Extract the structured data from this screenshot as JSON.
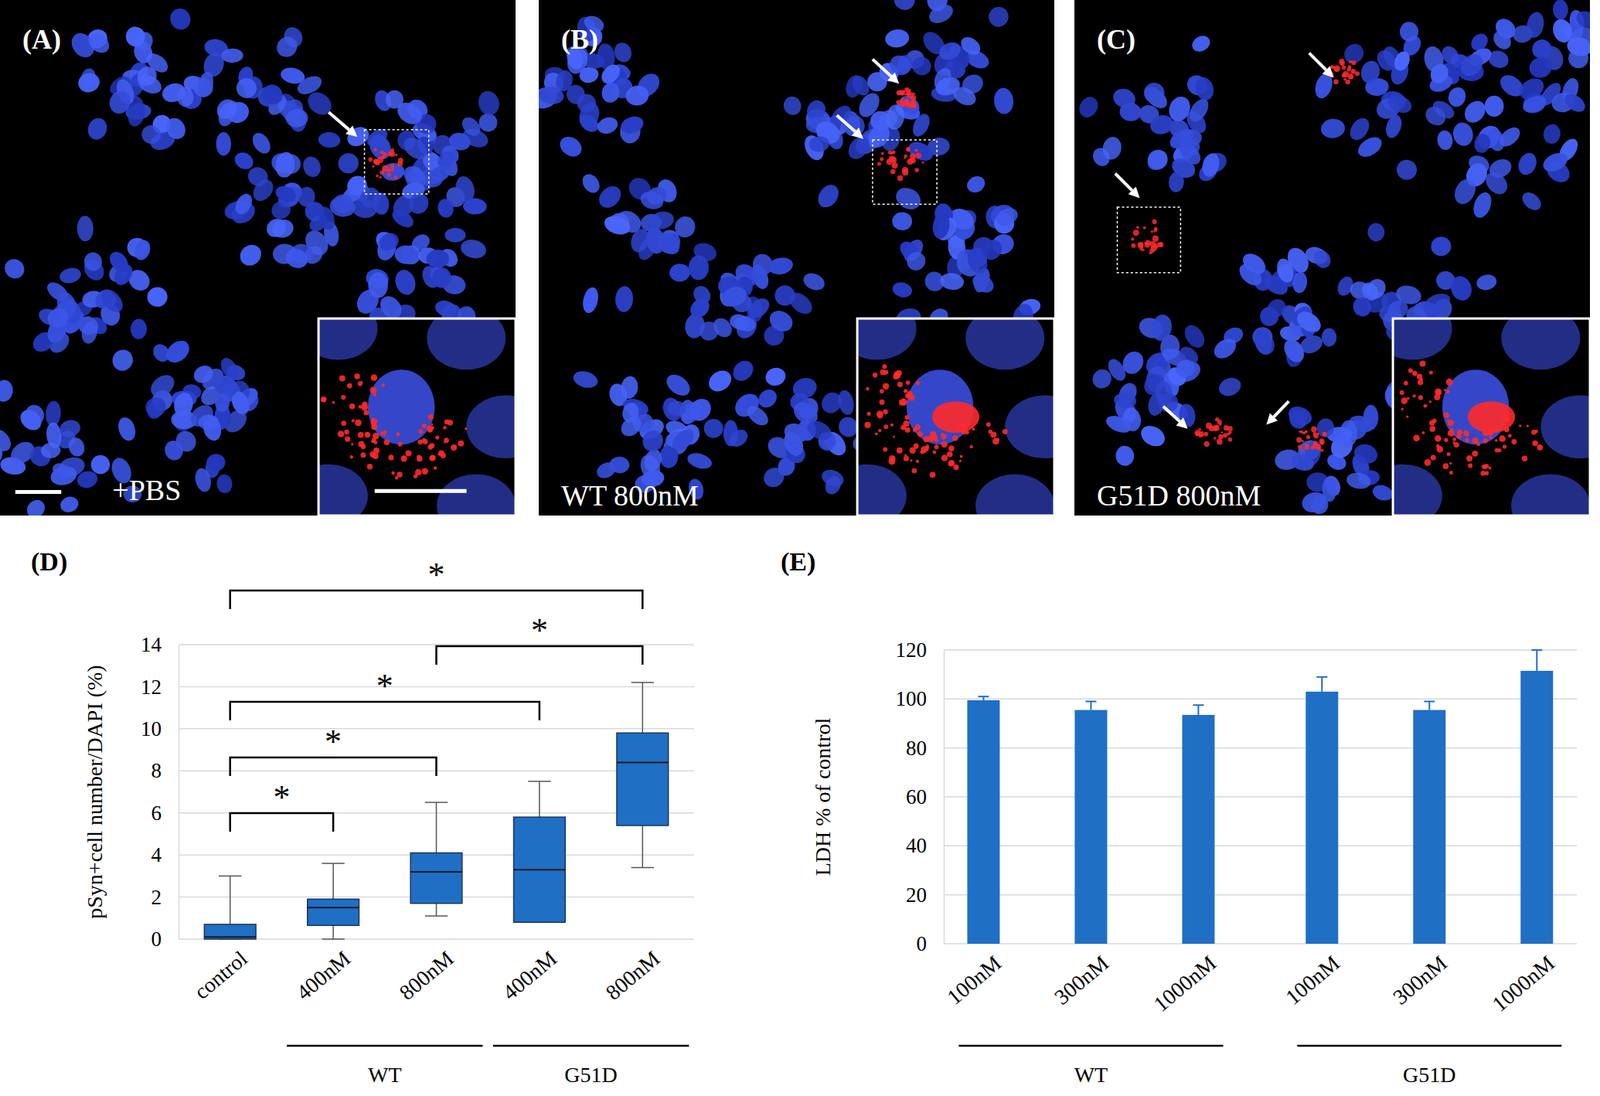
{
  "figure_panels": [
    {
      "title": "(A)",
      "caption": "+PBS"
    },
    {
      "title": "(B)",
      "caption": "WT 800nM"
    },
    {
      "title": "(C)",
      "caption": "G51D 800nM"
    }
  ],
  "chart_data": [
    {
      "title": "(D)",
      "type": "box",
      "y_label": "pSyn+cell number/DAPI (%)",
      "categories": [
        "control",
        "400nM",
        "800nM",
        "400nM",
        "800nM"
      ],
      "groups": [
        {
          "name": "WT",
          "from": 1,
          "to": 2
        },
        {
          "name": "G51D",
          "from": 3,
          "to": 4
        }
      ],
      "min": [
        0,
        0,
        1.1,
        0.8,
        3.4
      ],
      "q1": [
        0,
        0.65,
        1.7,
        0.8,
        5.4
      ],
      "median": [
        0.1,
        1.5,
        3.2,
        3.3,
        8.4
      ],
      "q3": [
        0.7,
        1.9,
        4.1,
        5.8,
        9.8
      ],
      "max": [
        3.0,
        3.6,
        6.5,
        7.5,
        12.2
      ],
      "color": "#1f6fc5",
      "ylim": [
        0,
        14
      ],
      "yticks": [
        0,
        2,
        4,
        6,
        8,
        10,
        12,
        14
      ],
      "grid": true,
      "annotations": [
        {
          "from": 0,
          "to": 1,
          "label": "*"
        },
        {
          "from": 0,
          "to": 2,
          "label": "*"
        },
        {
          "from": 0,
          "to": 3,
          "label": "*"
        },
        {
          "from": 2,
          "to": 4,
          "label": "*"
        },
        {
          "from": 0,
          "to": 4,
          "label": "*"
        }
      ]
    },
    {
      "title": "(E)",
      "type": "bar",
      "y_label": "LDH % of control",
      "categories": [
        "100nM",
        "300nM",
        "1000nM",
        "100nM",
        "300nM",
        "1000nM"
      ],
      "groups": [
        {
          "name": "WT",
          "from": 0,
          "to": 2
        },
        {
          "name": "G51D",
          "from": 3,
          "to": 5
        }
      ],
      "values": [
        99.5,
        95.5,
        93.5,
        103,
        95.5,
        111.5
      ],
      "errors": [
        1.5,
        3.5,
        4,
        6,
        3.5,
        8.5
      ],
      "color": "#1f6fc5",
      "ylim": [
        0,
        120
      ],
      "yticks": [
        0,
        20,
        40,
        60,
        80,
        100,
        120
      ],
      "grid": true
    }
  ]
}
